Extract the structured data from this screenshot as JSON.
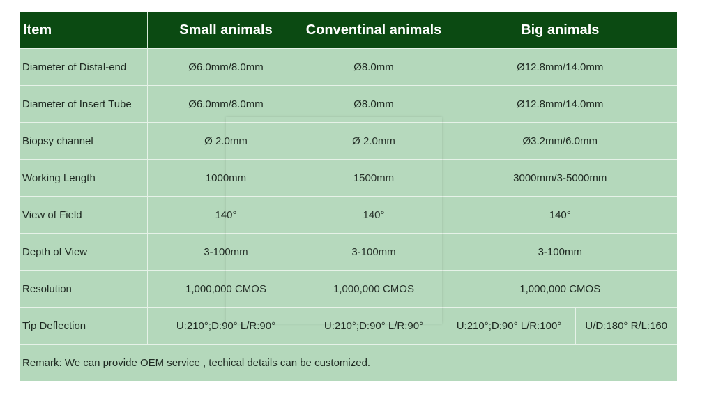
{
  "header": {
    "item": "Item",
    "small": "Small animals",
    "conventional": "Conventinal animals",
    "big": "Big animals"
  },
  "rows": [
    {
      "label": "Diameter of Distal-end",
      "small": "Ø6.0mm/8.0mm",
      "conventional": "Ø8.0mm",
      "big": "Ø12.8mm/14.0mm"
    },
    {
      "label": "Diameter of Insert Tube",
      "small": "Ø6.0mm/8.0mm",
      "conventional": "Ø8.0mm",
      "big": "Ø12.8mm/14.0mm"
    },
    {
      "label": "Biopsy channel",
      "small": "Ø 2.0mm",
      "conventional": "Ø 2.0mm",
      "big": "Ø3.2mm/6.0mm"
    },
    {
      "label": "Working Length",
      "small": "1000mm",
      "conventional": "1500mm",
      "big": "3000mm/3-5000mm"
    },
    {
      "label": "View of Field",
      "small": "140°",
      "conventional": "140°",
      "big": "140°"
    },
    {
      "label": "Depth of View",
      "small": "3-100mm",
      "conventional": "3-100mm",
      "big": "3-100mm"
    },
    {
      "label": "Resolution",
      "small": "1,000,000 CMOS",
      "conventional": "1,000,000 CMOS",
      "big": "1,000,000 CMOS"
    }
  ],
  "tip_row": {
    "label": "Tip Deflection",
    "small": "U:210°;D:90° L/R:90°",
    "conventional": "U:210°;D:90° L/R:90°",
    "big_a": "U:210°;D:90° L/R:100°",
    "big_b": "U/D:180° R/L:160"
  },
  "remark": "Remark: We can provide OEM service , techical details can be customized.",
  "colors": {
    "header_bg": "#0b4a12",
    "cell_bg": "#b4d8bb"
  }
}
